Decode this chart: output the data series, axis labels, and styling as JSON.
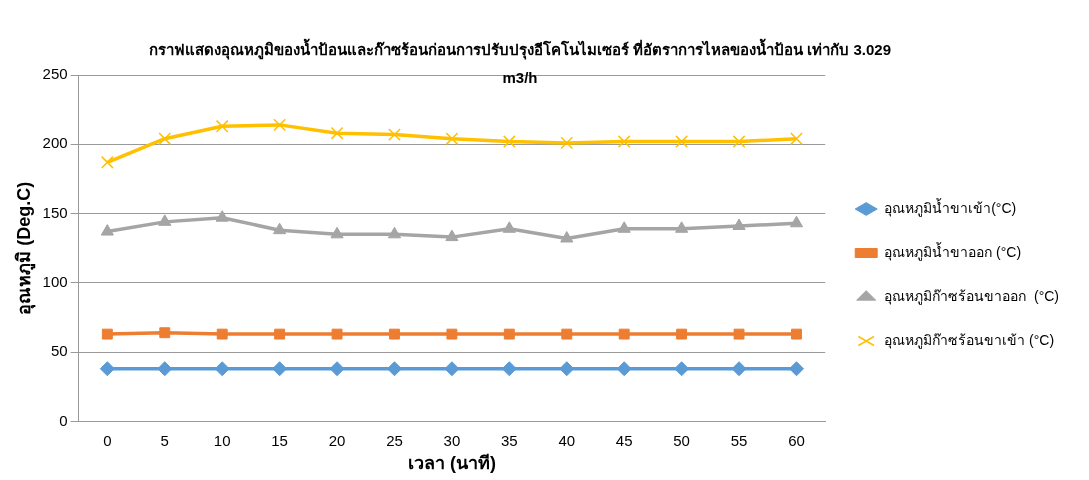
{
  "chart_data": {
    "type": "line",
    "title": "กราฟแสดงอุณหภูมิของน้ำป้อนและก๊าซร้อนก่อนการปรับปรุงอีโคโนไมเซอร์ ที่อัตราการไหลของน้ำป้อน เท่ากับ 3.029 m3/h",
    "xlabel": "เวลา (นาที)",
    "ylabel": "อุณหภูมิ (Deg.C)",
    "categories": [
      "0",
      "5",
      "10",
      "15",
      "20",
      "25",
      "30",
      "35",
      "40",
      "45",
      "50",
      "55",
      "60"
    ],
    "series": [
      {
        "name": "อุณหภูมิน้ำขาเข้า(°C)",
        "color": "#5b9bd5",
        "marker": "diamond",
        "values": [
          38,
          38,
          38,
          38,
          38,
          38,
          38,
          38,
          38,
          38,
          38,
          38,
          38
        ]
      },
      {
        "name": "อุณหภูมิน้ำขาออก (°C)",
        "color": "#ed7d31",
        "marker": "square",
        "values": [
          63,
          64,
          63,
          63,
          63,
          63,
          63,
          63,
          63,
          63,
          63,
          63,
          63
        ]
      },
      {
        "name": "อุณหภูมิก๊าซร้อนขาออก  (°C)",
        "color": "#a5a5a5",
        "marker": "triangle",
        "values": [
          137,
          144,
          147,
          138,
          135,
          135,
          133,
          139,
          132,
          139,
          139,
          141,
          143
        ]
      },
      {
        "name": "อุณหภูมิก๊าซร้อนขาเข้า (°C)",
        "color": "#ffc000",
        "marker": "cross",
        "values": [
          187,
          204,
          213,
          214,
          208,
          207,
          204,
          202,
          201,
          202,
          202,
          202,
          204
        ]
      }
    ],
    "ylim": [
      0,
      250
    ],
    "yticks": [
      0,
      50,
      100,
      150,
      200,
      250
    ],
    "grid": "y",
    "legend": "right",
    "line_style": "solid"
  }
}
